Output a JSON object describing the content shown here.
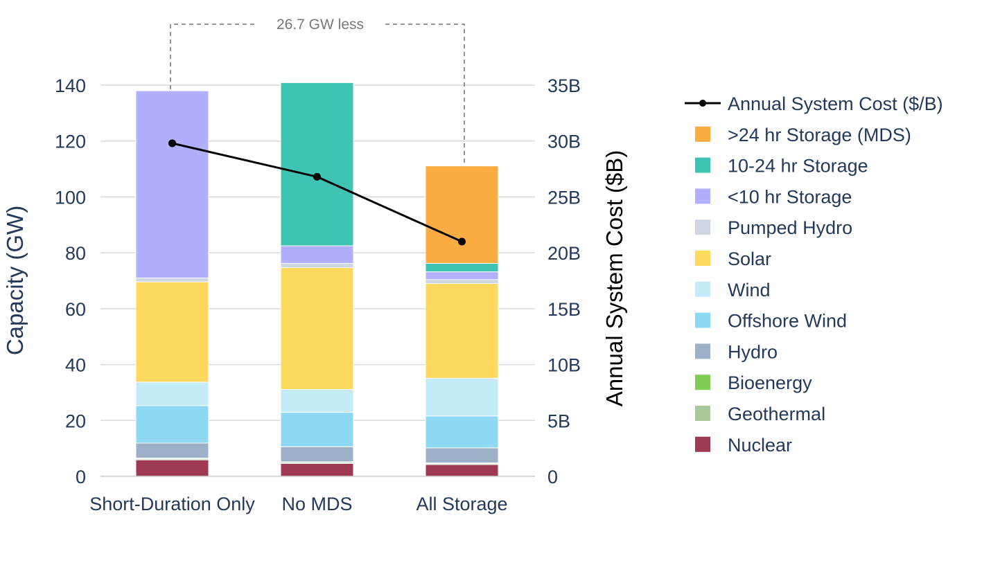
{
  "chart_data": {
    "type": "bar",
    "stacked": true,
    "categories": [
      "Short-Duration Only",
      "No MDS",
      "All Storage"
    ],
    "ylabel": "Capacity (GW)",
    "y2label": "Annual System Cost ($B)",
    "ylim": [
      0,
      140
    ],
    "y_ticks": [
      "0",
      "20",
      "40",
      "60",
      "80",
      "100",
      "120",
      "140"
    ],
    "y2lim": [
      0,
      35
    ],
    "y2_ticks": [
      "0",
      "5B",
      "10B",
      "15B",
      "20B",
      "25B",
      "30B",
      "35B"
    ],
    "grid": true,
    "legend_position": "right",
    "annotation": "26.7 GW less",
    "series": [
      {
        "name": "Nuclear",
        "color": "#9e3a52",
        "values": [
          5.9,
          4.6,
          4.2
        ]
      },
      {
        "name": "Geothermal",
        "color": "#a8c99a",
        "values": [
          0.4,
          0.4,
          0.4
        ]
      },
      {
        "name": "Bioenergy",
        "color": "#7dcd53",
        "values": [
          0.2,
          0.2,
          0.2
        ]
      },
      {
        "name": "Hydro",
        "color": "#9cb0c8",
        "values": [
          5.4,
          5.4,
          5.4
        ]
      },
      {
        "name": "Offshore Wind",
        "color": "#8dd8f3",
        "values": [
          13.4,
          12.3,
          11.4
        ]
      },
      {
        "name": "Wind",
        "color": "#c6ebf8",
        "values": [
          8.4,
          8.2,
          13.5
        ]
      },
      {
        "name": "Solar",
        "color": "#fed95f",
        "values": [
          35.9,
          43.6,
          33.9
        ]
      },
      {
        "name": "Pumped Hydro",
        "color": "#cdd6e3",
        "values": [
          1.4,
          1.5,
          1.4
        ]
      },
      {
        "name": "<10 hr Storage",
        "color": "#b0b0ff",
        "values": [
          67.0,
          6.3,
          2.8
        ]
      },
      {
        "name": "10-24 hr Storage",
        "color": "#3fc4b4",
        "values": [
          0.0,
          58.4,
          3.0
        ]
      },
      {
        "name": ">24 hr Storage (MDS)",
        "color": "#fbad43",
        "values": [
          0.0,
          0.0,
          34.9
        ]
      }
    ],
    "line_series": {
      "name": "Annual System Cost ($/B)",
      "color": "#000000",
      "axis": "right",
      "values": [
        29.8,
        26.8,
        21.0
      ]
    }
  }
}
